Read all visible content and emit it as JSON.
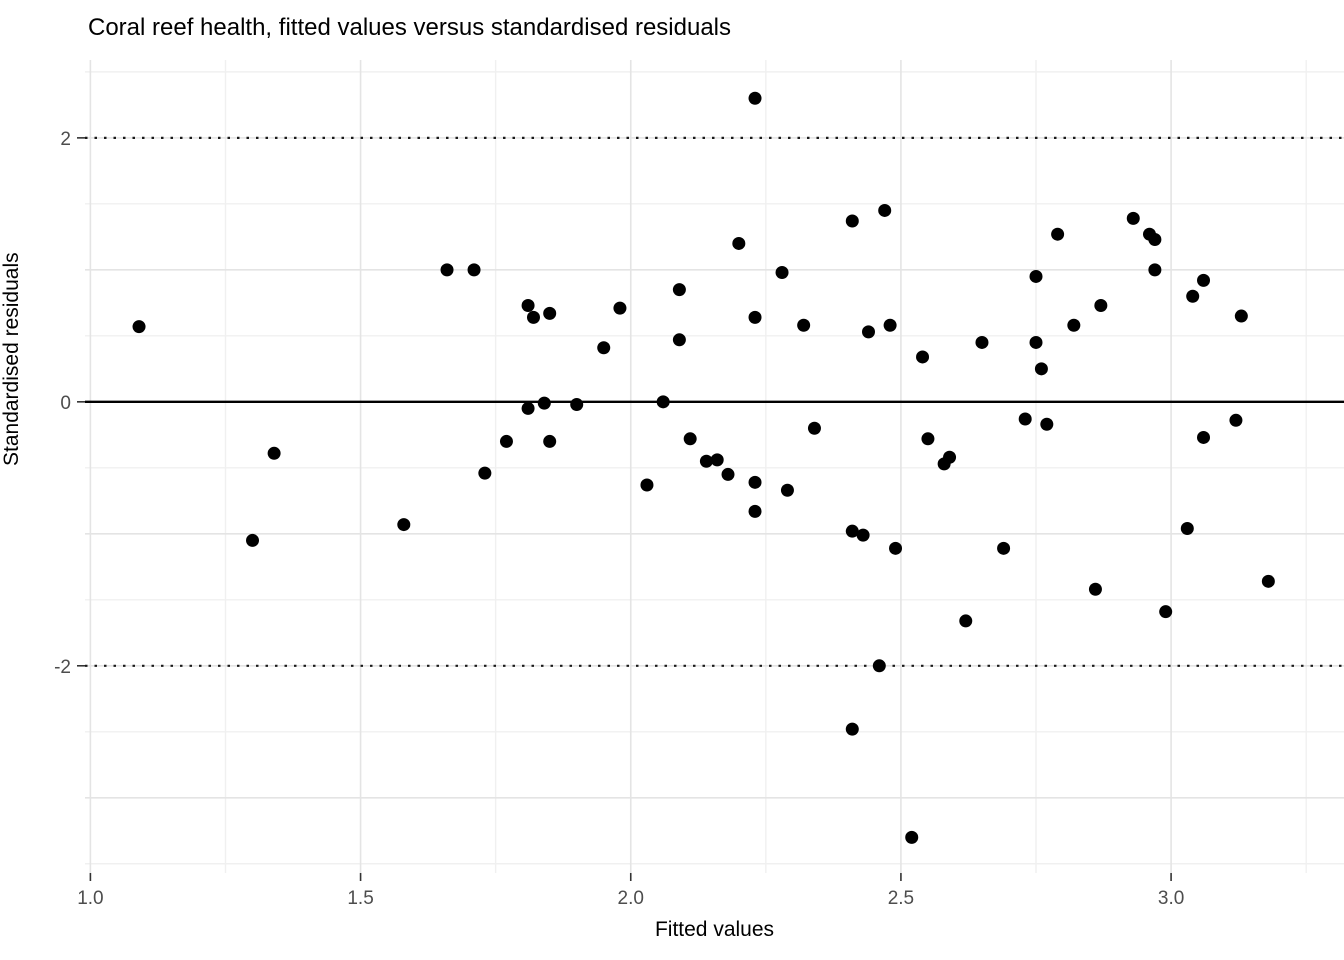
{
  "title": "Coral reef health, fitted values versus standardised residuals",
  "colors": {
    "background": "#ffffff",
    "grid_major": "#e4e4e4",
    "grid_minor": "#f0f0f0",
    "point": "#000000",
    "zero_line": "#000000",
    "ref_line": "#1a1a1a",
    "tick_label": "#4d4d4d",
    "tick_mark": "#333333"
  },
  "chart_data": {
    "type": "scatter",
    "title": "Coral reef health, fitted values versus standardised residuals",
    "xlabel": "Fitted values",
    "ylabel": "Standardised residuals",
    "xlim": [
      0.99,
      3.32
    ],
    "ylim": [
      -3.57,
      2.59
    ],
    "x_ticks": [
      1.0,
      1.5,
      2.0,
      2.5,
      3.0
    ],
    "x_tick_labels": [
      "1.0",
      "1.5",
      "2.0",
      "2.5",
      "3.0"
    ],
    "x_minor": [
      1.25,
      1.75,
      2.25,
      2.75,
      3.25
    ],
    "y_ticks": [
      -2,
      0,
      2
    ],
    "y_tick_labels": [
      "-2",
      "0",
      "2"
    ],
    "y_gridlines": [
      -3,
      -2,
      -1,
      0,
      1,
      2
    ],
    "y_minor": [
      -3.5,
      -2.5,
      -1.5,
      -0.5,
      0.5,
      1.5,
      2.5
    ],
    "grid": true,
    "legend": "none",
    "reference_lines": {
      "solid_at": 0,
      "dotted_at": [
        2,
        -2
      ]
    },
    "point_radius": 6.5,
    "points": [
      [
        1.09,
        0.57
      ],
      [
        1.3,
        -1.05
      ],
      [
        1.34,
        -0.39
      ],
      [
        1.58,
        -0.93
      ],
      [
        1.66,
        1.0
      ],
      [
        1.71,
        1.0
      ],
      [
        1.73,
        -0.54
      ],
      [
        1.77,
        -0.3
      ],
      [
        1.81,
        0.73
      ],
      [
        1.81,
        -0.05
      ],
      [
        1.82,
        0.64
      ],
      [
        1.84,
        -0.01
      ],
      [
        1.85,
        0.67
      ],
      [
        1.85,
        -0.3
      ],
      [
        1.9,
        -0.02
      ],
      [
        1.95,
        0.41
      ],
      [
        1.98,
        0.71
      ],
      [
        2.03,
        -0.63
      ],
      [
        2.06,
        0.0
      ],
      [
        2.09,
        0.85
      ],
      [
        2.09,
        0.47
      ],
      [
        2.11,
        -0.28
      ],
      [
        2.14,
        -0.45
      ],
      [
        2.16,
        -0.44
      ],
      [
        2.18,
        -0.55
      ],
      [
        2.2,
        1.2
      ],
      [
        2.23,
        2.3
      ],
      [
        2.23,
        0.64
      ],
      [
        2.23,
        -0.61
      ],
      [
        2.23,
        -0.83
      ],
      [
        2.28,
        0.98
      ],
      [
        2.29,
        -0.67
      ],
      [
        2.32,
        0.58
      ],
      [
        2.34,
        -0.2
      ],
      [
        2.41,
        1.37
      ],
      [
        2.41,
        -0.98
      ],
      [
        2.41,
        -2.48
      ],
      [
        2.43,
        -1.01
      ],
      [
        2.44,
        0.53
      ],
      [
        2.46,
        -2.0
      ],
      [
        2.47,
        1.45
      ],
      [
        2.48,
        0.58
      ],
      [
        2.49,
        -1.11
      ],
      [
        2.52,
        -3.3
      ],
      [
        2.54,
        0.34
      ],
      [
        2.55,
        -0.28
      ],
      [
        2.58,
        -0.47
      ],
      [
        2.59,
        -0.42
      ],
      [
        2.62,
        -1.66
      ],
      [
        2.65,
        0.45
      ],
      [
        2.69,
        -1.11
      ],
      [
        2.73,
        -0.13
      ],
      [
        2.75,
        0.95
      ],
      [
        2.75,
        0.45
      ],
      [
        2.76,
        0.25
      ],
      [
        2.77,
        -0.17
      ],
      [
        2.79,
        1.27
      ],
      [
        2.82,
        0.58
      ],
      [
        2.86,
        -1.42
      ],
      [
        2.87,
        0.73
      ],
      [
        2.93,
        1.39
      ],
      [
        2.96,
        1.27
      ],
      [
        2.97,
        1.23
      ],
      [
        2.97,
        1.0
      ],
      [
        2.99,
        -1.59
      ],
      [
        3.03,
        -0.96
      ],
      [
        3.04,
        0.8
      ],
      [
        3.06,
        0.92
      ],
      [
        3.06,
        -0.27
      ],
      [
        3.12,
        -0.14
      ],
      [
        3.13,
        0.65
      ],
      [
        3.18,
        -1.36
      ]
    ]
  }
}
